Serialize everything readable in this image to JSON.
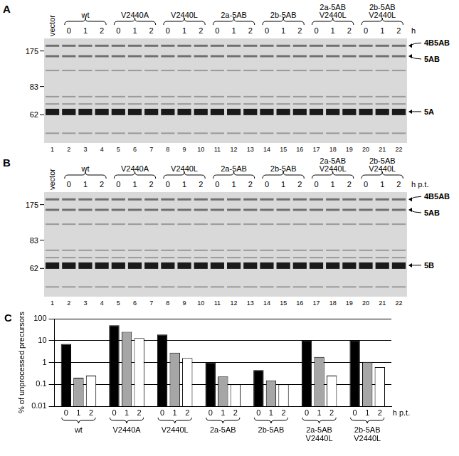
{
  "gels": [
    {
      "panel": "A",
      "first_lane": "vector",
      "groups": [
        "wt",
        "V2440A",
        "V2440L",
        "2a-5AB",
        "2b-5AB",
        "2a-5AB V2440L",
        "2b-5AB V2440L"
      ],
      "times": [
        "0",
        "1",
        "2"
      ],
      "time_unit": "h",
      "lanes": [
        1,
        2,
        3,
        4,
        5,
        6,
        7,
        8,
        9,
        10,
        11,
        12,
        13,
        14,
        15,
        16,
        17,
        18,
        19,
        20,
        21,
        22
      ],
      "markers": [
        175,
        83,
        62
      ],
      "bands": [
        "4B5AB",
        "5AB",
        "5A"
      ]
    },
    {
      "panel": "B",
      "first_lane": "vector",
      "groups": [
        "wt",
        "V2440A",
        "V2440L",
        "2a-5AB",
        "2b-5AB",
        "2a-5AB V2440L",
        "2b-5AB V2440L"
      ],
      "times": [
        "0",
        "1",
        "2"
      ],
      "time_unit": "h p.t.",
      "lanes": [
        1,
        2,
        3,
        4,
        5,
        6,
        7,
        8,
        9,
        10,
        11,
        12,
        13,
        14,
        15,
        16,
        17,
        18,
        19,
        20,
        21,
        22
      ],
      "markers": [
        175,
        83,
        62
      ],
      "bands": [
        "4B5AB",
        "5AB",
        "5B"
      ]
    }
  ],
  "chart_data": {
    "panel": "C",
    "type": "bar",
    "y_label": "% of unprocessed precursors",
    "x_label": "h p.t.",
    "categories": [
      "wt",
      "V2440A",
      "V2440L",
      "2a-5AB",
      "2b-5AB",
      "2a-5AB V2440L",
      "2b-5AB V2440L"
    ],
    "series": [
      {
        "name": "0",
        "color": "#000000",
        "values": [
          7,
          50,
          19,
          1.0,
          0.45,
          10,
          10
        ]
      },
      {
        "name": "1",
        "color": "#a6a6a6",
        "values": [
          0.2,
          25,
          2.8,
          0.23,
          0.15,
          1.8,
          1.05
        ]
      },
      {
        "name": "2",
        "color": "#ffffff",
        "values": [
          0.25,
          13,
          1.6,
          0.1,
          0.1,
          0.25,
          0.62
        ]
      }
    ],
    "log": "y",
    "ylim": [
      0.01,
      100
    ],
    "yticks": [
      0.01,
      0.1,
      1,
      10,
      100
    ],
    "grid": true
  }
}
